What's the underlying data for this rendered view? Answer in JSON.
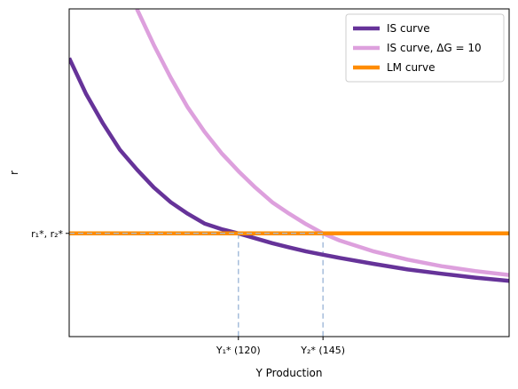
{
  "chart_data": {
    "type": "line",
    "title": "",
    "xlabel": "Y Production",
    "ylabel": "r",
    "xlim": [
      70,
      200
    ],
    "ylim": [
      0.0,
      1.0
    ],
    "grid": false,
    "legend": {
      "placement": "top-right"
    },
    "x_ticks": [
      {
        "value": 120,
        "label": "Y₁* (120)"
      },
      {
        "value": 145,
        "label": "Y₂* (145)"
      }
    ],
    "y_ticks": [
      {
        "value": 0.315,
        "label": "r₁*, r₂*"
      }
    ],
    "series": [
      {
        "name": "IS curve",
        "color": "#663399",
        "x": [
          70,
          75,
          80,
          85,
          90,
          95,
          100,
          105,
          110,
          115,
          120,
          125,
          130,
          135,
          140,
          145,
          150,
          160,
          170,
          180,
          190,
          200
        ],
        "y": [
          0.85,
          0.74,
          0.65,
          0.57,
          0.51,
          0.455,
          0.41,
          0.375,
          0.345,
          0.328,
          0.315,
          0.3,
          0.285,
          0.272,
          0.26,
          0.25,
          0.24,
          0.222,
          0.205,
          0.192,
          0.18,
          0.17
        ]
      },
      {
        "name": "IS curve, ΔG = 10",
        "color": "#dda0dd",
        "x": [
          90,
          95,
          100,
          105,
          110,
          115,
          120,
          125,
          130,
          135,
          140,
          145,
          150,
          160,
          170,
          180,
          190,
          200
        ],
        "y": [
          1.0,
          0.89,
          0.79,
          0.7,
          0.625,
          0.56,
          0.505,
          0.455,
          0.41,
          0.375,
          0.343,
          0.315,
          0.293,
          0.26,
          0.235,
          0.215,
          0.2,
          0.188
        ]
      },
      {
        "name": "LM curve",
        "color": "#ff8c00",
        "x": [
          70,
          200
        ],
        "y": [
          0.315,
          0.315
        ]
      }
    ],
    "equilibria": [
      {
        "x": 120,
        "y": 0.315
      },
      {
        "x": 145,
        "y": 0.315
      }
    ],
    "guide_line_color": "#a6bddb"
  }
}
